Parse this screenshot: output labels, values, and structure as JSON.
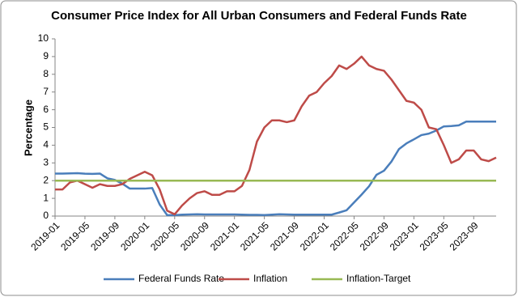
{
  "chart_data": {
    "type": "line",
    "title": "Consumer Price Index for All Urban Consumers and Federal Funds Rate",
    "y_label": "Percentage",
    "categories": [
      "2019-01",
      null,
      null,
      null,
      "2019-05",
      null,
      null,
      null,
      "2019-09",
      null,
      null,
      null,
      "2020-01",
      null,
      null,
      null,
      "2020-05",
      null,
      null,
      null,
      "2020-09",
      null,
      null,
      null,
      "2021-01",
      null,
      null,
      null,
      "2021-05",
      null,
      null,
      null,
      "2021-09",
      null,
      null,
      null,
      "2022-01",
      null,
      null,
      null,
      "2022-05",
      null,
      null,
      null,
      "2022-09",
      null,
      null,
      null,
      "2023-01",
      null,
      null,
      null,
      "2023-05",
      null,
      null,
      null,
      "2023-09",
      null,
      null,
      null
    ],
    "series": [
      {
        "name": "Federal Funds Rate",
        "color": "#4a7ebb",
        "values": [
          2.4,
          2.4,
          2.41,
          2.42,
          2.39,
          2.38,
          2.4,
          2.13,
          2.04,
          1.83,
          1.55,
          1.55,
          1.55,
          1.58,
          0.65,
          0.05,
          0.05,
          0.08,
          0.09,
          0.1,
          0.09,
          0.09,
          0.09,
          0.09,
          0.09,
          0.08,
          0.07,
          0.07,
          0.06,
          0.08,
          0.1,
          0.09,
          0.08,
          0.08,
          0.08,
          0.08,
          0.08,
          0.08,
          0.2,
          0.33,
          0.77,
          1.21,
          1.68,
          2.33,
          2.56,
          3.08,
          3.78,
          4.1,
          4.33,
          4.57,
          4.65,
          4.83,
          5.06,
          5.08,
          5.12,
          5.33,
          5.33,
          5.33,
          5.33,
          5.33
        ]
      },
      {
        "name": "Inflation",
        "color": "#be4b48",
        "values": [
          1.5,
          1.5,
          1.9,
          2.0,
          1.8,
          1.6,
          1.8,
          1.7,
          1.7,
          1.8,
          2.1,
          2.3,
          2.5,
          2.3,
          1.5,
          0.3,
          0.1,
          0.6,
          1.0,
          1.3,
          1.4,
          1.2,
          1.2,
          1.4,
          1.4,
          1.7,
          2.6,
          4.2,
          5.0,
          5.4,
          5.4,
          5.3,
          5.4,
          6.2,
          6.8,
          7.0,
          7.5,
          7.9,
          8.5,
          8.3,
          8.6,
          9.0,
          8.5,
          8.3,
          8.2,
          7.7,
          7.1,
          6.5,
          6.4,
          6.0,
          5.0,
          4.9,
          4.0,
          3.0,
          3.2,
          3.7,
          3.7,
          3.2,
          3.1,
          3.3
        ]
      },
      {
        "name": "Inflation-Target",
        "color": "#98b954",
        "values": [
          2,
          2,
          2,
          2,
          2,
          2,
          2,
          2,
          2,
          2,
          2,
          2,
          2,
          2,
          2,
          2,
          2,
          2,
          2,
          2,
          2,
          2,
          2,
          2,
          2,
          2,
          2,
          2,
          2,
          2,
          2,
          2,
          2,
          2,
          2,
          2,
          2,
          2,
          2,
          2,
          2,
          2,
          2,
          2,
          2,
          2,
          2,
          2,
          2,
          2,
          2,
          2,
          2,
          2,
          2,
          2,
          2,
          2,
          2,
          2
        ]
      }
    ],
    "ylim": [
      0,
      10
    ],
    "yticks": [
      0,
      1,
      2,
      3,
      4,
      5,
      6,
      7,
      8,
      9,
      10
    ],
    "grid": false,
    "legend": "bottom"
  }
}
